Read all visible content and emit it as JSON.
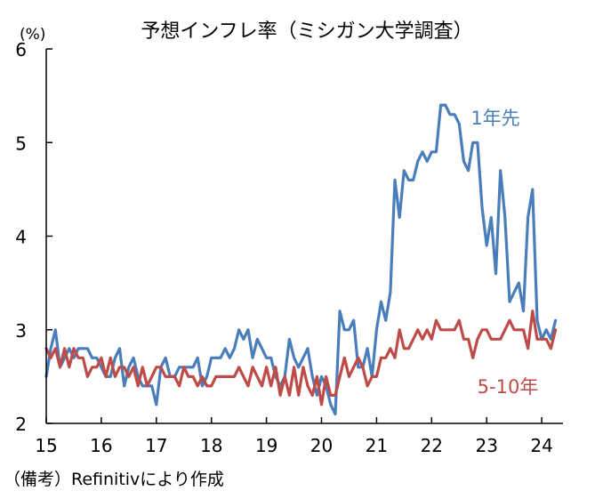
{
  "chart_data": {
    "type": "line",
    "title": "予想インフレ率（ミシガン大学調査）",
    "ylabel": "(%)",
    "ylim": [
      2,
      6
    ],
    "xlim": [
      2015,
      2024.3
    ],
    "y_ticks": [
      "2",
      "3",
      "4",
      "5",
      "6"
    ],
    "x_ticks": [
      "15",
      "16",
      "17",
      "18",
      "19",
      "20",
      "21",
      "22",
      "23",
      "24"
    ],
    "source": "（備考）Refinitivにより作成",
    "series": [
      {
        "name": "1年先",
        "color": "#4a7ebb",
        "label_position": "upper-right",
        "x": [
          2015.0,
          2015.083,
          2015.167,
          2015.25,
          2015.333,
          2015.417,
          2015.5,
          2015.583,
          2015.667,
          2015.75,
          2015.833,
          2015.917,
          2016.0,
          2016.083,
          2016.167,
          2016.25,
          2016.333,
          2016.417,
          2016.5,
          2016.583,
          2016.667,
          2016.75,
          2016.833,
          2016.917,
          2017.0,
          2017.083,
          2017.167,
          2017.25,
          2017.333,
          2017.417,
          2017.5,
          2017.583,
          2017.667,
          2017.75,
          2017.833,
          2017.917,
          2018.0,
          2018.083,
          2018.167,
          2018.25,
          2018.333,
          2018.417,
          2018.5,
          2018.583,
          2018.667,
          2018.75,
          2018.833,
          2018.917,
          2019.0,
          2019.083,
          2019.167,
          2019.25,
          2019.333,
          2019.417,
          2019.5,
          2019.583,
          2019.667,
          2019.75,
          2019.833,
          2019.917,
          2020.0,
          2020.083,
          2020.167,
          2020.25,
          2020.333,
          2020.417,
          2020.5,
          2020.583,
          2020.667,
          2020.75,
          2020.833,
          2020.917,
          2021.0,
          2021.083,
          2021.167,
          2021.25,
          2021.333,
          2021.417,
          2021.5,
          2021.583,
          2021.667,
          2021.75,
          2021.833,
          2021.917,
          2022.0,
          2022.083,
          2022.167,
          2022.25,
          2022.333,
          2022.417,
          2022.5,
          2022.583,
          2022.667,
          2022.75,
          2022.833,
          2022.917,
          2023.0,
          2023.083,
          2023.167,
          2023.25,
          2023.333,
          2023.417,
          2023.5,
          2023.583,
          2023.667,
          2023.75,
          2023.833,
          2023.917,
          2024.0,
          2024.083,
          2024.167,
          2024.25
        ],
        "values": [
          2.5,
          2.8,
          3.0,
          2.6,
          2.7,
          2.8,
          2.7,
          2.8,
          2.8,
          2.8,
          2.7,
          2.7,
          2.6,
          2.5,
          2.5,
          2.7,
          2.8,
          2.4,
          2.6,
          2.7,
          2.5,
          2.4,
          2.4,
          2.4,
          2.2,
          2.6,
          2.7,
          2.5,
          2.5,
          2.6,
          2.6,
          2.6,
          2.6,
          2.7,
          2.4,
          2.5,
          2.7,
          2.7,
          2.7,
          2.8,
          2.7,
          2.8,
          3.0,
          2.9,
          3.0,
          2.7,
          2.9,
          2.8,
          2.7,
          2.7,
          2.5,
          2.4,
          2.5,
          2.9,
          2.7,
          2.6,
          2.7,
          2.8,
          2.5,
          2.3,
          2.5,
          2.4,
          2.2,
          2.1,
          3.2,
          3.0,
          3.0,
          3.1,
          2.6,
          2.6,
          2.8,
          2.5,
          3.0,
          3.3,
          3.1,
          3.4,
          4.6,
          4.2,
          4.7,
          4.6,
          4.6,
          4.8,
          4.9,
          4.8,
          4.9,
          4.9,
          5.4,
          5.4,
          5.3,
          5.3,
          5.2,
          4.8,
          4.7,
          5.0,
          5.0,
          4.3,
          3.9,
          4.2,
          3.6,
          4.7,
          4.2,
          3.3,
          3.4,
          3.5,
          3.2,
          4.2,
          4.5,
          3.1,
          2.9,
          3.0,
          2.9,
          3.1
        ]
      },
      {
        "name": "5-10年",
        "color": "#be4b48",
        "label_position": "lower-right",
        "x": [
          2015.0,
          2015.083,
          2015.167,
          2015.25,
          2015.333,
          2015.417,
          2015.5,
          2015.583,
          2015.667,
          2015.75,
          2015.833,
          2015.917,
          2016.0,
          2016.083,
          2016.167,
          2016.25,
          2016.333,
          2016.417,
          2016.5,
          2016.583,
          2016.667,
          2016.75,
          2016.833,
          2016.917,
          2017.0,
          2017.083,
          2017.167,
          2017.25,
          2017.333,
          2017.417,
          2017.5,
          2017.583,
          2017.667,
          2017.75,
          2017.833,
          2017.917,
          2018.0,
          2018.083,
          2018.167,
          2018.25,
          2018.333,
          2018.417,
          2018.5,
          2018.583,
          2018.667,
          2018.75,
          2018.833,
          2018.917,
          2019.0,
          2019.083,
          2019.167,
          2019.25,
          2019.333,
          2019.417,
          2019.5,
          2019.583,
          2019.667,
          2019.75,
          2019.833,
          2019.917,
          2020.0,
          2020.083,
          2020.167,
          2020.25,
          2020.333,
          2020.417,
          2020.5,
          2020.583,
          2020.667,
          2020.75,
          2020.833,
          2020.917,
          2021.0,
          2021.083,
          2021.167,
          2021.25,
          2021.333,
          2021.417,
          2021.5,
          2021.583,
          2021.667,
          2021.75,
          2021.833,
          2021.917,
          2022.0,
          2022.083,
          2022.167,
          2022.25,
          2022.333,
          2022.417,
          2022.5,
          2022.583,
          2022.667,
          2022.75,
          2022.833,
          2022.917,
          2023.0,
          2023.083,
          2023.167,
          2023.25,
          2023.333,
          2023.417,
          2023.5,
          2023.583,
          2023.667,
          2023.75,
          2023.833,
          2023.917,
          2024.0,
          2024.083,
          2024.167,
          2024.25
        ],
        "values": [
          2.8,
          2.7,
          2.8,
          2.6,
          2.8,
          2.6,
          2.8,
          2.7,
          2.7,
          2.5,
          2.6,
          2.6,
          2.7,
          2.5,
          2.7,
          2.5,
          2.6,
          2.6,
          2.5,
          2.6,
          2.4,
          2.6,
          2.4,
          2.5,
          2.6,
          2.6,
          2.5,
          2.5,
          2.5,
          2.4,
          2.6,
          2.5,
          2.5,
          2.4,
          2.5,
          2.4,
          2.4,
          2.5,
          2.5,
          2.5,
          2.5,
          2.5,
          2.6,
          2.5,
          2.4,
          2.6,
          2.5,
          2.4,
          2.6,
          2.4,
          2.6,
          2.3,
          2.5,
          2.3,
          2.6,
          2.3,
          2.6,
          2.4,
          2.3,
          2.5,
          2.2,
          2.5,
          2.3,
          2.3,
          2.5,
          2.7,
          2.5,
          2.6,
          2.7,
          2.6,
          2.4,
          2.5,
          2.5,
          2.7,
          2.7,
          2.8,
          2.7,
          3.0,
          2.8,
          2.8,
          2.9,
          3.0,
          2.9,
          3.0,
          2.9,
          3.1,
          3.0,
          3.0,
          3.0,
          3.0,
          3.1,
          2.9,
          2.9,
          2.7,
          2.9,
          3.0,
          3.0,
          2.9,
          2.9,
          2.9,
          3.0,
          3.1,
          3.0,
          3.0,
          3.0,
          2.8,
          3.2,
          2.9,
          2.9,
          2.9,
          2.8,
          3.0
        ]
      }
    ]
  }
}
